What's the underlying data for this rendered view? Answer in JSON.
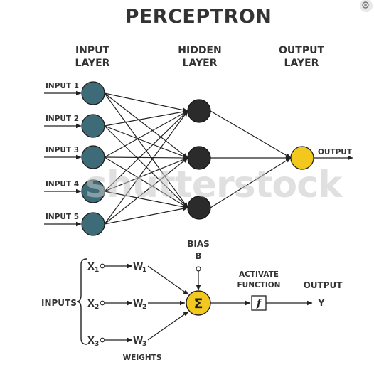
{
  "title": "PERCEPTRON",
  "layers": {
    "input": [
      "INPUT",
      "LAYER"
    ],
    "hidden": [
      "HIDDEN",
      "LAYER"
    ],
    "output": [
      "OUTPUT",
      "LAYER"
    ]
  },
  "inputs": [
    "INPUT 1",
    "INPUT 2",
    "INPUT 3",
    "INPUT 4",
    "INPUT 5"
  ],
  "output_label": "OUTPUT",
  "perceptron": {
    "inputs_label": "INPUTS",
    "x": [
      "X",
      "X",
      "X"
    ],
    "w": [
      "W",
      "W",
      "W"
    ],
    "sub": [
      "1",
      "2",
      "3"
    ],
    "weights_label": "WEIGHTS",
    "bias": [
      "BIAS",
      "B"
    ],
    "sum_symbol": "Σ",
    "activate": [
      "ACTIVATE",
      "FUNCTION"
    ],
    "f_symbol": "f",
    "output": [
      "OUTPUT",
      "Y"
    ]
  },
  "watermark": "shutterstock",
  "colors": {
    "input_node": "#3d6b78",
    "hidden_node": "#2b2b2b",
    "output_node": "#f2c81e",
    "text": "#333333"
  },
  "icons": [
    "zoom-in-icon"
  ]
}
